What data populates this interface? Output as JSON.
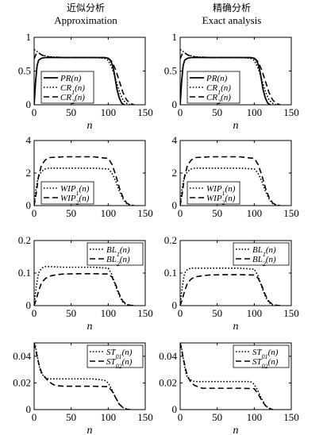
{
  "columns": [
    {
      "title": "近似分析",
      "subtitle": "Approximation"
    },
    {
      "title": "精确分析",
      "subtitle": "Exact analysis"
    }
  ],
  "styles": {
    "solid": "#000000",
    "dotted": "#000000",
    "dashed": "#000000",
    "marker": "#555555"
  },
  "chart_data": [
    {
      "id": "r0c0",
      "type": "line",
      "xlabel": "n",
      "xlim": [
        0,
        150
      ],
      "ylim": [
        0,
        1
      ],
      "xticks": [
        "0",
        "50",
        "100",
        "150"
      ],
      "yticks": [
        "0",
        "0.5",
        "1"
      ],
      "ytick_values": [
        0,
        0.5,
        1
      ],
      "legend": {
        "position": "bottom-left"
      },
      "series": [
        {
          "name": "PR(n)",
          "style": "solid",
          "x": [
            0,
            2,
            4,
            6,
            10,
            15,
            20,
            40,
            60,
            80,
            95,
            100,
            103,
            106,
            108,
            110,
            112,
            115,
            118,
            120,
            122
          ],
          "y": [
            0,
            0.35,
            0.58,
            0.66,
            0.69,
            0.7,
            0.7,
            0.7,
            0.7,
            0.7,
            0.7,
            0.69,
            0.66,
            0.58,
            0.48,
            0.35,
            0.22,
            0.1,
            0.03,
            0.01,
            0
          ]
        },
        {
          "name": "CR1(n)",
          "style": "dotted",
          "x": [
            0,
            3,
            6,
            10,
            20,
            40,
            60,
            80,
            95,
            100,
            105,
            110,
            113,
            116,
            120,
            125,
            130
          ],
          "y": [
            0.82,
            0.8,
            0.77,
            0.74,
            0.71,
            0.7,
            0.7,
            0.7,
            0.69,
            0.66,
            0.55,
            0.38,
            0.27,
            0.17,
            0.07,
            0.02,
            0
          ]
        },
        {
          "name": "CR2(n)",
          "style": "dashed",
          "x": [
            0,
            3,
            6,
            10,
            15,
            20,
            40,
            60,
            80,
            95,
            100,
            105,
            110,
            115,
            120,
            125,
            130,
            135
          ],
          "y": [
            0.68,
            0.76,
            0.77,
            0.74,
            0.72,
            0.71,
            0.7,
            0.7,
            0.7,
            0.7,
            0.69,
            0.64,
            0.52,
            0.35,
            0.18,
            0.07,
            0.02,
            0
          ]
        }
      ]
    },
    {
      "id": "r0c1",
      "type": "line",
      "xlabel": "n",
      "xlim": [
        0,
        150
      ],
      "ylim": [
        0,
        1
      ],
      "xticks": [
        "0",
        "50",
        "100",
        "150"
      ],
      "yticks": [
        "0",
        "0.5",
        "1"
      ],
      "ytick_values": [
        0,
        0.5,
        1
      ],
      "legend": {
        "position": "bottom-left"
      },
      "series": [
        {
          "name": "PR(n)",
          "style": "solid",
          "x": [
            0,
            2,
            4,
            6,
            10,
            15,
            20,
            40,
            60,
            80,
            95,
            100,
            103,
            106,
            108,
            110,
            112,
            115,
            118,
            120,
            122
          ],
          "y": [
            0,
            0.35,
            0.58,
            0.66,
            0.69,
            0.7,
            0.7,
            0.7,
            0.7,
            0.7,
            0.7,
            0.69,
            0.66,
            0.58,
            0.48,
            0.35,
            0.22,
            0.1,
            0.03,
            0.01,
            0
          ]
        },
        {
          "name": "CR1(n)",
          "style": "dotted",
          "x": [
            0,
            3,
            6,
            10,
            20,
            40,
            60,
            80,
            95,
            100,
            105,
            110,
            113,
            116,
            120,
            125,
            130
          ],
          "y": [
            0.82,
            0.8,
            0.77,
            0.74,
            0.71,
            0.7,
            0.7,
            0.7,
            0.69,
            0.66,
            0.55,
            0.38,
            0.27,
            0.17,
            0.07,
            0.02,
            0
          ]
        },
        {
          "name": "CR2(n)",
          "style": "dashed",
          "x": [
            0,
            3,
            6,
            10,
            15,
            20,
            40,
            60,
            80,
            95,
            100,
            105,
            110,
            115,
            120,
            125,
            130,
            135
          ],
          "y": [
            0.68,
            0.76,
            0.77,
            0.74,
            0.72,
            0.71,
            0.7,
            0.7,
            0.7,
            0.7,
            0.69,
            0.64,
            0.52,
            0.35,
            0.18,
            0.07,
            0.02,
            0
          ]
        }
      ]
    },
    {
      "id": "r1c0",
      "type": "line",
      "xlabel": "",
      "xlim": [
        0,
        150
      ],
      "ylim": [
        0,
        4
      ],
      "xticks": [
        "0",
        "50",
        "100",
        "150"
      ],
      "yticks": [
        "0",
        "2",
        "4"
      ],
      "ytick_values": [
        0,
        2,
        4
      ],
      "legend": {
        "position": "bottom-left"
      },
      "series": [
        {
          "name": "WIP1(n)",
          "style": "dotted",
          "x": [
            0,
            3,
            6,
            10,
            15,
            20,
            40,
            60,
            80,
            100,
            105,
            110,
            115,
            120,
            125,
            130,
            135
          ],
          "y": [
            0,
            1.2,
            1.8,
            2.1,
            2.25,
            2.3,
            2.3,
            2.3,
            2.3,
            2.25,
            2.0,
            1.5,
            0.9,
            0.4,
            0.12,
            0.03,
            0
          ]
        },
        {
          "name": "WIP2(n)",
          "style": "dashed",
          "x": [
            0,
            3,
            6,
            10,
            15,
            20,
            40,
            60,
            80,
            100,
            105,
            110,
            115,
            120,
            125,
            130,
            135
          ],
          "y": [
            0,
            0.8,
            1.8,
            2.5,
            2.8,
            2.95,
            3.0,
            3.0,
            3.0,
            2.9,
            2.55,
            1.9,
            1.1,
            0.5,
            0.15,
            0.03,
            0
          ]
        }
      ]
    },
    {
      "id": "r1c1",
      "type": "line",
      "xlabel": "",
      "xlim": [
        0,
        150
      ],
      "ylim": [
        0,
        4
      ],
      "xticks": [
        "0",
        "50",
        "100",
        "150"
      ],
      "yticks": [
        "0",
        "2",
        "4"
      ],
      "ytick_values": [
        0,
        2,
        4
      ],
      "legend": {
        "position": "bottom-left"
      },
      "series": [
        {
          "name": "WIP1(n)",
          "style": "dotted",
          "x": [
            0,
            3,
            6,
            10,
            15,
            20,
            40,
            60,
            80,
            100,
            105,
            110,
            115,
            120,
            125,
            130,
            135
          ],
          "y": [
            0,
            1.2,
            1.8,
            2.1,
            2.25,
            2.3,
            2.3,
            2.3,
            2.3,
            2.25,
            2.0,
            1.5,
            0.9,
            0.4,
            0.12,
            0.03,
            0
          ]
        },
        {
          "name": "WIP2(n)",
          "style": "dashed",
          "x": [
            0,
            3,
            6,
            10,
            15,
            20,
            40,
            60,
            80,
            100,
            105,
            110,
            115,
            120,
            125,
            130,
            135
          ],
          "y": [
            0,
            0.8,
            1.8,
            2.5,
            2.8,
            2.95,
            3.0,
            3.0,
            3.0,
            2.9,
            2.55,
            1.9,
            1.1,
            0.5,
            0.15,
            0.03,
            0
          ]
        }
      ]
    },
    {
      "id": "r2c0",
      "type": "line",
      "xlabel": "n",
      "xlim": [
        0,
        150
      ],
      "ylim": [
        0,
        0.2
      ],
      "xticks": [
        "0",
        "50",
        "100",
        "150"
      ],
      "yticks": [
        "0",
        "0.1",
        "0.2"
      ],
      "ytick_values": [
        0,
        0.1,
        0.2
      ],
      "legend": {
        "position": "top-right"
      },
      "series": [
        {
          "name": "BL1(n)",
          "style": "dotted",
          "x": [
            0,
            3,
            6,
            10,
            15,
            20,
            40,
            60,
            80,
            100,
            105,
            110,
            115,
            120,
            125,
            130
          ],
          "y": [
            0,
            0.06,
            0.1,
            0.115,
            0.12,
            0.12,
            0.118,
            0.118,
            0.118,
            0.115,
            0.095,
            0.06,
            0.03,
            0.01,
            0.003,
            0
          ]
        },
        {
          "name": "BL2(n)",
          "style": "dashed",
          "x": [
            0,
            3,
            6,
            10,
            15,
            20,
            30,
            40,
            60,
            80,
            100,
            105,
            110,
            115,
            120,
            125,
            130,
            135
          ],
          "y": [
            0,
            0.02,
            0.045,
            0.07,
            0.083,
            0.09,
            0.095,
            0.097,
            0.098,
            0.098,
            0.097,
            0.088,
            0.065,
            0.035,
            0.013,
            0.004,
            0.001,
            0
          ]
        }
      ]
    },
    {
      "id": "r2c1",
      "type": "line",
      "xlabel": "n",
      "xlim": [
        0,
        150
      ],
      "ylim": [
        0,
        0.2
      ],
      "xticks": [
        "0",
        "50",
        "100",
        "150"
      ],
      "yticks": [
        "0",
        "0.1",
        "0.2"
      ],
      "ytick_values": [
        0,
        0.1,
        0.2
      ],
      "legend": {
        "position": "top-right"
      },
      "series": [
        {
          "name": "BL1(n)",
          "style": "dotted",
          "x": [
            0,
            3,
            6,
            10,
            15,
            20,
            40,
            60,
            80,
            100,
            105,
            110,
            115,
            120,
            125,
            130
          ],
          "y": [
            0,
            0.06,
            0.1,
            0.112,
            0.115,
            0.115,
            0.115,
            0.115,
            0.115,
            0.112,
            0.092,
            0.058,
            0.028,
            0.009,
            0.002,
            0
          ]
        },
        {
          "name": "BL2(n)",
          "style": "dashed",
          "x": [
            0,
            3,
            6,
            10,
            15,
            20,
            30,
            40,
            60,
            80,
            100,
            105,
            110,
            115,
            120,
            125,
            130,
            135
          ],
          "y": [
            0,
            0.02,
            0.045,
            0.07,
            0.082,
            0.088,
            0.092,
            0.094,
            0.095,
            0.095,
            0.094,
            0.085,
            0.062,
            0.033,
            0.012,
            0.004,
            0.001,
            0
          ]
        }
      ]
    },
    {
      "id": "r3c0",
      "type": "line",
      "xlabel": "n",
      "xlim": [
        0,
        150
      ],
      "ylim": [
        0,
        0.05
      ],
      "xticks": [
        "0",
        "50",
        "100",
        "150"
      ],
      "yticks": [
        "0",
        "0.02",
        "0.04"
      ],
      "ytick_values": [
        0,
        0.02,
        0.04
      ],
      "legend": {
        "position": "top-right"
      },
      "series": [
        {
          "name": "ST01(n)",
          "style": "dotted",
          "x": [
            0,
            2,
            4,
            6,
            8,
            10,
            15,
            20,
            30,
            40,
            60,
            80,
            95,
            100,
            105,
            110,
            115,
            120,
            125,
            130
          ],
          "y": [
            0.05,
            0.047,
            0.041,
            0.035,
            0.03,
            0.027,
            0.024,
            0.023,
            0.023,
            0.023,
            0.023,
            0.023,
            0.022,
            0.02,
            0.015,
            0.009,
            0.004,
            0.0015,
            0.0004,
            0
          ]
        },
        {
          "name": "ST02(n)",
          "style": "dashed",
          "x": [
            0,
            2,
            4,
            6,
            8,
            10,
            15,
            20,
            25,
            30,
            40,
            60,
            80,
            100,
            105,
            110,
            115,
            120,
            125,
            130
          ],
          "y": [
            0.05,
            0.045,
            0.04,
            0.035,
            0.031,
            0.028,
            0.024,
            0.021,
            0.019,
            0.018,
            0.0175,
            0.0175,
            0.0175,
            0.0172,
            0.014,
            0.009,
            0.004,
            0.0015,
            0.0003,
            0
          ]
        }
      ]
    },
    {
      "id": "r3c1",
      "type": "line",
      "xlabel": "n",
      "xlim": [
        0,
        150
      ],
      "ylim": [
        0,
        0.05
      ],
      "xticks": [
        "0",
        "50",
        "100",
        "150"
      ],
      "yticks": [
        "0",
        "0.02",
        "0.04"
      ],
      "ytick_values": [
        0,
        0.02,
        0.04
      ],
      "legend": {
        "position": "top-right"
      },
      "series": [
        {
          "name": "ST01(n)",
          "style": "dotted",
          "x": [
            0,
            2,
            4,
            6,
            8,
            10,
            15,
            20,
            30,
            40,
            60,
            80,
            95,
            100,
            105,
            110,
            115,
            120,
            125
          ],
          "y": [
            0.05,
            0.046,
            0.039,
            0.032,
            0.027,
            0.024,
            0.022,
            0.021,
            0.021,
            0.021,
            0.021,
            0.021,
            0.021,
            0.019,
            0.014,
            0.008,
            0.003,
            0.001,
            0
          ]
        },
        {
          "name": "ST02(n)",
          "style": "dashed",
          "x": [
            0,
            2,
            4,
            6,
            8,
            10,
            15,
            20,
            25,
            30,
            40,
            60,
            80,
            100,
            105,
            110,
            115,
            120,
            125
          ],
          "y": [
            0.05,
            0.045,
            0.039,
            0.034,
            0.029,
            0.025,
            0.02,
            0.018,
            0.017,
            0.016,
            0.016,
            0.016,
            0.016,
            0.0157,
            0.012,
            0.007,
            0.003,
            0.001,
            0
          ]
        }
      ]
    }
  ]
}
